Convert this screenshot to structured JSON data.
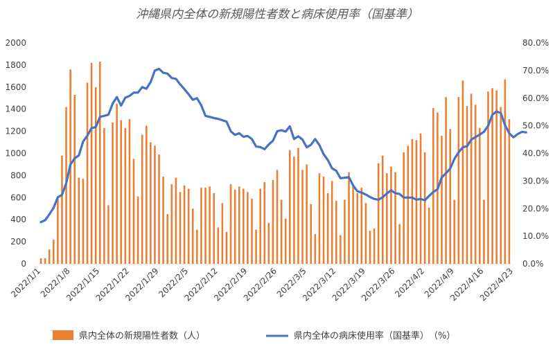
{
  "chart_data": {
    "type": "bar+line",
    "title": "沖縄県内全体の新規陽性者数と病床使用率（国基準）",
    "x_tick_labels": [
      "2022/1/1",
      "2022/1/8",
      "2022/1/15",
      "2022/1/22",
      "2022/1/29",
      "2022/2/5",
      "2022/2/12",
      "2022/2/19",
      "2022/2/26",
      "2022/3/5",
      "2022/3/12",
      "2022/3/19",
      "2022/3/26",
      "2022/4/2",
      "2022/4/9",
      "2022/4/16",
      "2022/4/23"
    ],
    "y_left_ticks": [
      "0",
      "200",
      "400",
      "600",
      "800",
      "1000",
      "1200",
      "1400",
      "1600",
      "1800",
      "2000"
    ],
    "y_right_ticks": [
      "0.0%",
      "10.0%",
      "20.0%",
      "30.0%",
      "40.0%",
      "50.0%",
      "60.0%",
      "70.0%",
      "80.0%"
    ],
    "ylim_left": [
      0,
      2000
    ],
    "ylim_right": [
      0,
      80
    ],
    "grid": false,
    "legend_position": "bottom",
    "colors": {
      "bars": "#ED7D31",
      "line": "#4472C4"
    },
    "series": [
      {
        "name": "県内全体の新規陽性者数（人）",
        "type": "bar",
        "axis": "left",
        "x_start": "2022/1/1",
        "values": [
          50,
          50,
          130,
          220,
          600,
          980,
          1420,
          1760,
          1530,
          780,
          770,
          1640,
          1820,
          1600,
          1830,
          1230,
          530,
          1280,
          1450,
          1300,
          1230,
          1310,
          950,
          610,
          1170,
          1250,
          1100,
          1070,
          990,
          790,
          450,
          720,
          780,
          650,
          710,
          680,
          500,
          310,
          690,
          690,
          700,
          640,
          330,
          550,
          290,
          720,
          670,
          700,
          680,
          650,
          590,
          310,
          680,
          740,
          370,
          760,
          850,
          580,
          410,
          1030,
          970,
          1050,
          850,
          900,
          540,
          270,
          820,
          790,
          640,
          750,
          570,
          260,
          580,
          830,
          720,
          640,
          690,
          550,
          300,
          320,
          910,
          980,
          820,
          880,
          830,
          360,
          1010,
          1070,
          1130,
          1120,
          1180,
          1010,
          510,
          1410,
          1370,
          1160,
          1510,
          1220,
          580,
          1510,
          1660,
          1430,
          1540,
          1440,
          1230,
          580,
          1560,
          1590,
          1570,
          1420,
          1670,
          1310
        ]
      },
      {
        "name": "県内全体の病床使用率（国基準）　（%）",
        "type": "line",
        "axis": "right",
        "x_start": "2022/1/1",
        "values": [
          15.1,
          15.8,
          17.9,
          20.3,
          24.1,
          25.0,
          29.2,
          36.0,
          38.2,
          39.3,
          44.3,
          46.4,
          49.2,
          49.5,
          53.2,
          53.6,
          54.0,
          58.0,
          60.4,
          57.3,
          60.2,
          60.8,
          62.0,
          62.0,
          64.0,
          63.4,
          65.8,
          70.0,
          70.6,
          69.2,
          68.9,
          67.3,
          67.0,
          65.0,
          63.3,
          61.4,
          59.4,
          60.0,
          57.4,
          53.6,
          53.2,
          52.8,
          52.5,
          52.0,
          51.5,
          48.0,
          46.7,
          47.3,
          46.0,
          46.3,
          45.2,
          42.5,
          42.3,
          41.5,
          43.2,
          44.6,
          48.0,
          48.4,
          47.9,
          49.8,
          45.2,
          46.2,
          45.0,
          42.2,
          43.1,
          45.2,
          43.0,
          39.7,
          37.6,
          34.6,
          33.7,
          31.0,
          31.2,
          31.4,
          28.4,
          26.3,
          25.8,
          25.1,
          24.2,
          23.5,
          23.2,
          24.1,
          25.5,
          26.6,
          25.6,
          25.3,
          24.0,
          24.0,
          24.0,
          23.2,
          23.5,
          23.0,
          24.6,
          26.0,
          27.0,
          31.3,
          32.8,
          34.5,
          38.0,
          40.4,
          42.2,
          42.6,
          45.0,
          45.9,
          46.8,
          47.8,
          50.0,
          54.0,
          55.2,
          54.6,
          50.2,
          47.3,
          45.8,
          47.0,
          47.8,
          47.6
        ]
      }
    ]
  }
}
